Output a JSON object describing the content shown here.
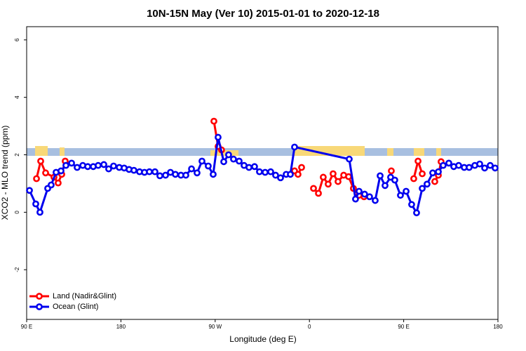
{
  "chart_data": {
    "type": "line",
    "title": "10N-15N May (Ver 10)   2015-01-01 to 2020-12-18",
    "x_label": "Longitude (deg E)",
    "y_label": "XCO2 - MLO trend (ppm)",
    "xlim": [
      90,
      540
    ],
    "xticks": [
      {
        "value": 90,
        "label": "90 E"
      },
      180,
      {
        "value": 270,
        "label": "90 W"
      },
      {
        "value": 360,
        "label": "0"
      },
      {
        "value": 450,
        "label": "90 E"
      },
      {
        "value": 540,
        "label": "180"
      }
    ],
    "ylim": [
      -3.73,
      6.46
    ],
    "yticks": [
      -2,
      0,
      2,
      4,
      6
    ],
    "legend": "bottom-left",
    "series": [
      {
        "name": "Land (Nadir&Glint)",
        "color": "#ff0000",
        "x": [
          99.4,
          103.4,
          108.1,
          116.1,
          120.1,
          123.5,
          126.8,
          200,
          268.8,
          272.8,
          276.1,
          320,
          345.8,
          349.1,
          352.5,
          358,
          363.9,
          368.6,
          373.2,
          377.9,
          382.6,
          387.3,
          392.7,
          397.4,
          402.0,
          407.4,
          412.1,
          425,
          438.2,
          450,
          459.6,
          463.7,
          467.7,
          475,
          479.7,
          483.1,
          485.7
        ],
        "values": [
          1.17,
          1.78,
          1.37,
          1.22,
          1.02,
          1.32,
          1.78,
          null,
          3.17,
          2.29,
          2.17,
          null,
          1.44,
          1.32,
          1.56,
          null,
          0.83,
          0.66,
          1.22,
          0.98,
          1.34,
          1.07,
          1.29,
          1.24,
          0.83,
          0.59,
          0.54,
          null,
          1.44,
          null,
          1.17,
          1.78,
          1.34,
          null,
          1.07,
          1.29,
          1.76
        ]
      },
      {
        "name": "Ocean (Glint)",
        "color": "#0000ee",
        "x": [
          92.7,
          98.7,
          102.7,
          110.1,
          113.4,
          118.1,
          122.8,
          127.5,
          132.9,
          138.2,
          143.6,
          148.3,
          153.6,
          158.3,
          163.7,
          168.3,
          173.0,
          178.4,
          183.1,
          187.8,
          192.4,
          197.8,
          202.5,
          207.2,
          212.5,
          217.2,
          222.6,
          227.3,
          232.0,
          237.3,
          242.0,
          247.4,
          252.7,
          257.4,
          263.4,
          268.1,
          272.8,
          278.2,
          282.8,
          287.5,
          292.9,
          297.6,
          302.3,
          307.6,
          312.3,
          317.7,
          323.0,
          327.7,
          332.4,
          337.8,
          341.8,
          345.8,
          398.0,
          404.0,
          407.4,
          412.7,
          417.4,
          422.8,
          427.5,
          432.2,
          437.5,
          441.5,
          446.9,
          452.3,
          457.6,
          462.3,
          467.7,
          472.3,
          477.7,
          483.1,
          487.7,
          493.1,
          497.8,
          502.5,
          507.8,
          512.5,
          517.9,
          522.6,
          527.3,
          532.6,
          537.3
        ],
        "values": [
          0.76,
          0.29,
          0,
          0.83,
          0.95,
          1.39,
          1.44,
          1.63,
          1.71,
          1.56,
          1.63,
          1.59,
          1.59,
          1.63,
          1.66,
          1.51,
          1.61,
          1.56,
          1.54,
          1.49,
          1.46,
          1.41,
          1.39,
          1.41,
          1.41,
          1.27,
          1.29,
          1.39,
          1.32,
          1.29,
          1.29,
          1.51,
          1.37,
          1.78,
          1.61,
          1.32,
          2.61,
          1.76,
          2.0,
          1.85,
          1.78,
          1.63,
          1.56,
          1.59,
          1.41,
          1.39,
          1.41,
          1.29,
          1.2,
          1.32,
          1.32,
          2.27,
          1.85,
          0.46,
          0.73,
          0.63,
          0.54,
          0.41,
          1.27,
          0.93,
          1.22,
          1.12,
          0.59,
          0.73,
          0.27,
          -0.02,
          0.83,
          0.98,
          1.37,
          1.41,
          1.63,
          1.71,
          1.59,
          1.63,
          1.56,
          1.56,
          1.63,
          1.68,
          1.54,
          1.63,
          1.54
        ]
      }
    ]
  }
}
